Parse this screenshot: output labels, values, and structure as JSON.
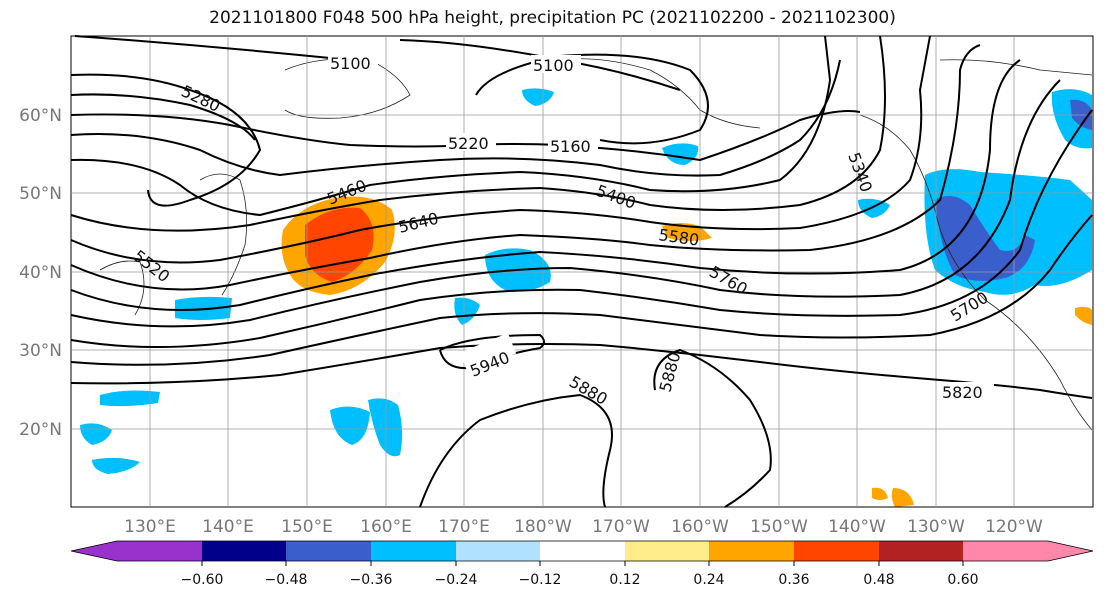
{
  "title": "2021101800 F048 500 hPa height, precipitation PC (2021102200 - 2021102300)",
  "lat_labels": [
    "60°N",
    "50°N",
    "40°N",
    "30°N",
    "20°N"
  ],
  "lon_labels": [
    "130°E",
    "140°E",
    "150°E",
    "160°E",
    "170°E",
    "180°W",
    "170°W",
    "160°W",
    "150°W",
    "140°W",
    "130°W",
    "120°W"
  ],
  "contour_labels": [
    "5100",
    "5100",
    "5280",
    "5220",
    "5160",
    "5460",
    "5640",
    "5400",
    "5580",
    "5340",
    "5520",
    "5760",
    "5700",
    "5940",
    "5880",
    "5880",
    "5820"
  ],
  "colorbar": {
    "ticks": [
      "−0.60",
      "−0.48",
      "−0.36",
      "−0.24",
      "−0.12",
      "0.12",
      "0.24",
      "0.36",
      "0.48",
      "0.60"
    ],
    "colors": [
      "#9932cc",
      "#00008b",
      "#3a5fcd",
      "#00bfff",
      "#b0e2ff",
      "#ffffff",
      "#ffec8b",
      "#ffa500",
      "#ff4500",
      "#b22222",
      "#ff88aa"
    ]
  },
  "colors": {
    "negative_strong": "#3a5fcd",
    "negative": "#00bfff",
    "positive": "#ffa500",
    "positive_strong": "#ff4500"
  }
}
